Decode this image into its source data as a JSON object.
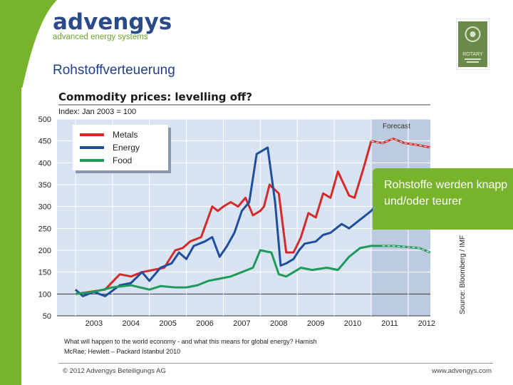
{
  "brand": {
    "name": "advengys",
    "tagline": "advanced energy systems",
    "accent": "#77b32b",
    "primary": "#2a4a8a"
  },
  "badge": {
    "text": "ROTARY"
  },
  "slide": {
    "title": "Rohstoffverteuerung"
  },
  "callout": {
    "text": "Rohstoffe werden knapp und/oder teurer"
  },
  "caption": {
    "text": "What will happen to the world economy - and what this means for global energy? Hamish McRae; Hewlett – Packard Istanbul 2010"
  },
  "footer": {
    "copyright": "© 2012 Advengys Beteiligungs AG",
    "url": "www.advengys.com"
  },
  "chart_data": {
    "type": "line",
    "title": "Commodity prices: levelling off?",
    "subtitle": "Index: Jan 2003 = 100",
    "source": "Source: Bloomberg / IMF",
    "forecast_label": "Forecast",
    "forecast_start": 2011.0,
    "xlim": [
      2002.5,
      2012.6
    ],
    "ylim": [
      50,
      500
    ],
    "yticks": [
      50,
      100,
      150,
      200,
      250,
      300,
      350,
      400,
      450,
      500
    ],
    "xtick_labels": [
      "2003",
      "2004",
      "2005",
      "2006",
      "2007",
      "2008",
      "2009",
      "2010",
      "2011",
      "2012"
    ],
    "xtick_positions": [
      2003.5,
      2004.5,
      2005.5,
      2006.5,
      2007.5,
      2008.5,
      2009.5,
      2010.5,
      2011.5,
      2012.5
    ],
    "grid": true,
    "legend_position": "top-left",
    "series": [
      {
        "name": "Metals",
        "color": "#d52a2a",
        "x": [
          2003.0,
          2003.4,
          2003.8,
          2004.2,
          2004.5,
          2004.8,
          2005.1,
          2005.4,
          2005.7,
          2005.9,
          2006.1,
          2006.4,
          2006.7,
          2006.85,
          2007.0,
          2007.2,
          2007.4,
          2007.6,
          2007.8,
          2008.0,
          2008.1,
          2008.25,
          2008.5,
          2008.7,
          2008.9,
          2009.1,
          2009.3,
          2009.5,
          2009.7,
          2009.9,
          2010.1,
          2010.4,
          2010.55,
          2010.8,
          2011.0,
          2011.3,
          2011.6,
          2011.9,
          2012.3,
          2012.6
        ],
        "y": [
          100,
          105,
          110,
          145,
          140,
          150,
          155,
          160,
          200,
          205,
          220,
          230,
          300,
          290,
          300,
          310,
          300,
          320,
          280,
          290,
          300,
          350,
          330,
          195,
          195,
          230,
          285,
          275,
          330,
          320,
          380,
          325,
          320,
          390,
          450,
          445,
          455,
          445,
          440,
          435
        ],
        "forecast_from_index": 34
      },
      {
        "name": "Energy",
        "color": "#1f4e9c",
        "x": [
          2003.0,
          2003.2,
          2003.5,
          2003.8,
          2004.2,
          2004.5,
          2004.8,
          2005.0,
          2005.3,
          2005.6,
          2005.8,
          2006.0,
          2006.2,
          2006.5,
          2006.7,
          2006.9,
          2007.1,
          2007.3,
          2007.5,
          2007.7,
          2007.9,
          2008.2,
          2008.4,
          2008.55,
          2008.7,
          2008.9,
          2009.05,
          2009.2,
          2009.5,
          2009.7,
          2009.9,
          2010.2,
          2010.4,
          2010.7,
          2011.0,
          2011.3,
          2011.6,
          2011.9,
          2012.3,
          2012.6
        ],
        "y": [
          110,
          95,
          105,
          95,
          120,
          125,
          150,
          130,
          160,
          170,
          195,
          180,
          210,
          220,
          230,
          185,
          210,
          240,
          290,
          310,
          420,
          435,
          310,
          165,
          170,
          180,
          200,
          215,
          220,
          235,
          240,
          260,
          250,
          270,
          290,
          320,
          345,
          350,
          345,
          340
        ],
        "visible_until_index": 36
      },
      {
        "name": "Food",
        "color": "#1f9a5a",
        "x": [
          2003.0,
          2003.5,
          2004.0,
          2004.5,
          2005.0,
          2005.3,
          2005.7,
          2006.0,
          2006.3,
          2006.6,
          2006.9,
          2007.2,
          2007.5,
          2007.8,
          2008.0,
          2008.3,
          2008.5,
          2008.7,
          2008.9,
          2009.1,
          2009.4,
          2009.8,
          2010.1,
          2010.4,
          2010.7,
          2011.0,
          2011.3,
          2011.6,
          2011.9,
          2012.3,
          2012.6
        ],
        "y": [
          100,
          105,
          115,
          120,
          110,
          118,
          115,
          115,
          120,
          130,
          135,
          140,
          150,
          160,
          200,
          195,
          145,
          140,
          150,
          160,
          155,
          160,
          155,
          185,
          205,
          210,
          210,
          210,
          208,
          205,
          195
        ],
        "forecast_from_index": 26
      }
    ]
  }
}
